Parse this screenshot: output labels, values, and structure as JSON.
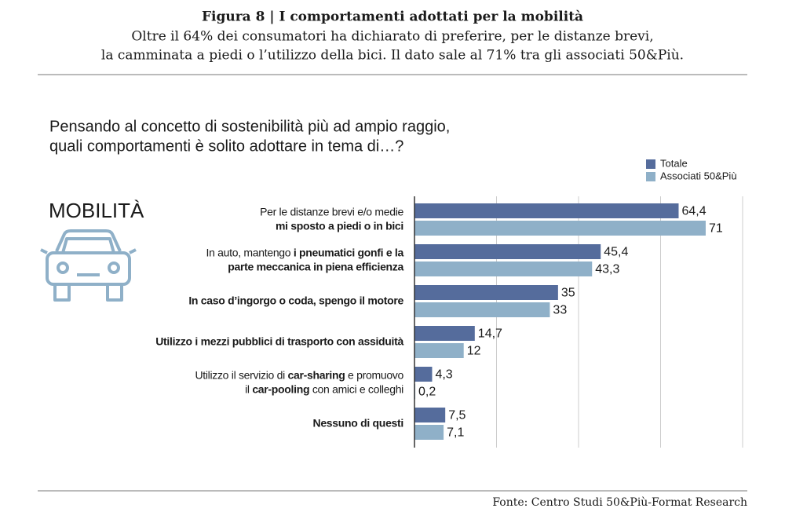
{
  "title": "Figura 8 | I comportamenti adottati per la mobilità",
  "subtitle": [
    "Oltre il 64% dei consumatori ha dichiarato di preferire, per le distanze brevi,",
    "la camminata a piedi o l’utilizzo della bici. Il dato sale al 71% tra gli associati 50&Più."
  ],
  "source": "Fonte: Centro Studi 50&Più-Format Research",
  "chart_data": {
    "type": "hbar",
    "question": [
      "Pensando al concetto di sostenibilità più ad ampio raggio,",
      "quali comportamenti è solito adottare in tema di…?"
    ],
    "section_label": "MOBILITÀ",
    "categories": [
      [
        [
          {
            "text": "Per le distanze brevi e/o medie",
            "bold": false
          }
        ],
        [
          {
            "text": "mi sposto a piedi o in bici",
            "bold": true
          }
        ]
      ],
      [
        [
          {
            "text": "In auto, mantengo ",
            "bold": false
          },
          {
            "text": "i pneumatici gonfi e la",
            "bold": true
          }
        ],
        [
          {
            "text": "parte meccanica in piena efficienza",
            "bold": true
          }
        ]
      ],
      [
        [
          {
            "text": "In caso d’ingorgo o coda, spengo il motore",
            "bold": true
          }
        ]
      ],
      [
        [
          {
            "text": "Utilizzo i mezzi pubblici di trasporto con assiduità",
            "bold": true
          }
        ]
      ],
      [
        [
          {
            "text": "Utilizzo il servizio di ",
            "bold": false
          },
          {
            "text": "car-sharing",
            "bold": true
          },
          {
            "text": " e promuovo",
            "bold": false
          }
        ],
        [
          {
            "text": "il ",
            "bold": false
          },
          {
            "text": "car-pooling",
            "bold": true
          },
          {
            "text": " con amici e colleghi",
            "bold": false
          }
        ]
      ],
      [
        [
          {
            "text": "Nessuno di questi",
            "bold": true
          }
        ]
      ]
    ],
    "series": [
      {
        "name": "Totale",
        "color": "#556c9c",
        "values": [
          64.4,
          45.4,
          35,
          14.7,
          4.3,
          7.5
        ],
        "value_labels": [
          "64,4",
          "45,4",
          "35",
          "14,7",
          "4,3",
          "7,5"
        ]
      },
      {
        "name": "Associati 50&Più",
        "color": "#8fb0c8",
        "values": [
          71,
          43.3,
          33,
          12,
          0.2,
          7.1
        ],
        "value_labels": [
          "71",
          "43,3",
          "33",
          "12",
          "0,2",
          "7,1"
        ]
      }
    ],
    "xlim": [
      0,
      80
    ],
    "xticks": [
      0,
      20,
      40,
      60,
      80
    ],
    "grid": true,
    "legend": "top-right"
  }
}
